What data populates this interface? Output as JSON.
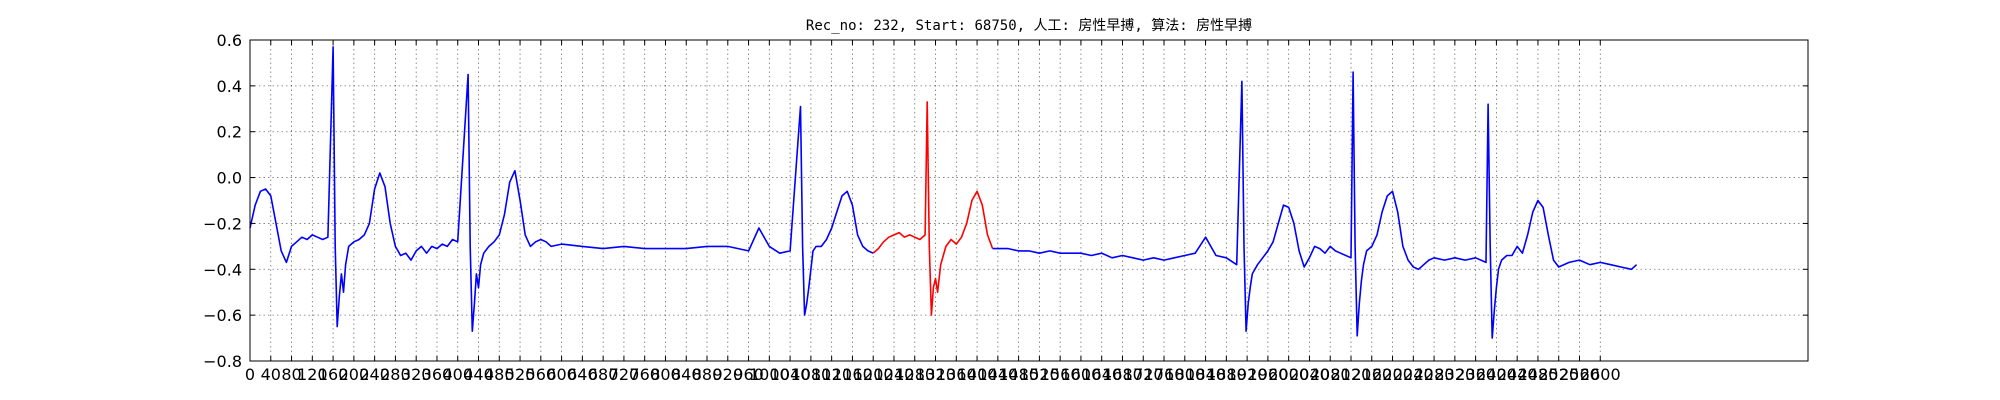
{
  "chart_data": {
    "type": "line",
    "title": "Rec_no: 232, Start: 68750, 人工: 房性早搏, 算法: 房性早搏",
    "xlabel": "",
    "ylabel": "",
    "xlim": [
      0,
      3000
    ],
    "ylim": [
      -0.8,
      0.6
    ],
    "grid": true,
    "xticks": [
      0,
      40,
      80,
      120,
      160,
      200,
      240,
      280,
      320,
      360,
      400,
      440,
      480,
      520,
      560,
      600,
      640,
      680,
      720,
      760,
      800,
      840,
      880,
      920,
      960,
      1000,
      1040,
      1080,
      1120,
      1160,
      1200,
      1240,
      1280,
      1320,
      1360,
      1400,
      1440,
      1480,
      1520,
      1560,
      1600,
      1640,
      1680,
      1720,
      1760,
      1800,
      1840,
      1880,
      1920,
      1960,
      2000,
      2040,
      2080,
      2120,
      2160,
      2200,
      2240,
      2280,
      2320,
      2360,
      2400,
      2440,
      2480,
      2520,
      2560,
      2600
    ],
    "xtick_labels": [
      "0",
      "40",
      "80",
      "120",
      "160",
      "200",
      "240",
      "280",
      "320",
      "360",
      "400",
      "440",
      "480",
      "520",
      "560",
      "600",
      "640",
      "680",
      "720",
      "760",
      "800",
      "840",
      "880",
      "920",
      "960",
      "1000",
      "1040",
      "1080",
      "1120",
      "1160",
      "1200",
      "1240",
      "1280",
      "1320",
      "1360",
      "1400",
      "1440",
      "1480",
      "1520",
      "1560",
      "1600",
      "1640",
      "1680",
      "1720",
      "1760",
      "1800",
      "1840",
      "1880",
      "1920",
      "1960",
      "2000",
      "2040",
      "2080",
      "2120",
      "2160",
      "2200",
      "2240",
      "2280",
      "2320",
      "2360",
      "2400",
      "2440",
      "2480",
      "2520",
      "2560",
      "2600"
    ],
    "yticks": [
      -0.8,
      -0.6,
      -0.4,
      -0.2,
      0.0,
      0.2,
      0.4,
      0.6
    ],
    "ytick_labels": [
      "−0.8",
      "−0.6",
      "−0.4",
      "−0.2",
      "0.0",
      "0.2",
      "0.4",
      "0.6"
    ],
    "series": [
      {
        "color": "#0000ff",
        "x": [
          0,
          10,
          20,
          30,
          40,
          50,
          60,
          70,
          80,
          90,
          100,
          110,
          120,
          130,
          140,
          150,
          160,
          164,
          168,
          172,
          176,
          180,
          184,
          190,
          200,
          210,
          220,
          230,
          240,
          250,
          260,
          270,
          280,
          290,
          300,
          310,
          320,
          330,
          340,
          350,
          360,
          370,
          380,
          390,
          400,
          420,
          424,
          428,
          432,
          436,
          440,
          444,
          450,
          460,
          470,
          480,
          490,
          500,
          510,
          520,
          530,
          540,
          550,
          560,
          570,
          580,
          600,
          640,
          680,
          720,
          760,
          800,
          840,
          880,
          920,
          940,
          960,
          980,
          1000,
          1020,
          1040,
          1060,
          1064,
          1068,
          1072,
          1076,
          1080,
          1084,
          1090,
          1100,
          1110,
          1120,
          1130,
          1140,
          1150,
          1160,
          1170,
          1180,
          1190,
          1200
        ],
        "y": [
          -0.22,
          -0.12,
          -0.06,
          -0.05,
          -0.08,
          -0.2,
          -0.32,
          -0.37,
          -0.3,
          -0.28,
          -0.26,
          -0.27,
          -0.25,
          -0.26,
          -0.27,
          -0.26,
          0.57,
          -0.3,
          -0.65,
          -0.52,
          -0.42,
          -0.5,
          -0.38,
          -0.3,
          -0.28,
          -0.27,
          -0.25,
          -0.2,
          -0.05,
          0.02,
          -0.04,
          -0.2,
          -0.3,
          -0.34,
          -0.33,
          -0.36,
          -0.32,
          -0.3,
          -0.33,
          -0.3,
          -0.31,
          -0.29,
          -0.3,
          -0.27,
          -0.28,
          0.45,
          -0.3,
          -0.67,
          -0.55,
          -0.42,
          -0.48,
          -0.38,
          -0.33,
          -0.3,
          -0.28,
          -0.25,
          -0.16,
          -0.02,
          0.03,
          -0.1,
          -0.25,
          -0.3,
          -0.28,
          -0.27,
          -0.28,
          -0.3,
          -0.29,
          -0.3,
          -0.31,
          -0.3,
          -0.31,
          -0.31,
          -0.31,
          -0.3,
          -0.3,
          -0.31,
          -0.32,
          -0.22,
          -0.3,
          -0.33,
          -0.32,
          0.31,
          -0.3,
          -0.6,
          -0.55,
          -0.48,
          -0.4,
          -0.32,
          -0.3,
          -0.3,
          -0.27,
          -0.22,
          -0.15,
          -0.08,
          -0.06,
          -0.12,
          -0.25,
          -0.3,
          -0.32,
          -0.33
        ]
      },
      {
        "color": "#ff0000",
        "x": [
          1200,
          1210,
          1220,
          1230,
          1240,
          1250,
          1260,
          1270,
          1280,
          1290,
          1300,
          1304,
          1308,
          1312,
          1316,
          1320,
          1324,
          1330,
          1340,
          1350,
          1360,
          1370,
          1380,
          1390,
          1400,
          1410,
          1420,
          1430
        ],
        "y": [
          -0.33,
          -0.31,
          -0.28,
          -0.26,
          -0.25,
          -0.24,
          -0.26,
          -0.25,
          -0.26,
          -0.27,
          -0.25,
          0.33,
          -0.3,
          -0.6,
          -0.48,
          -0.44,
          -0.5,
          -0.38,
          -0.3,
          -0.27,
          -0.29,
          -0.26,
          -0.2,
          -0.1,
          -0.06,
          -0.12,
          -0.25,
          -0.31
        ]
      },
      {
        "color": "#0000ff",
        "x": [
          1430,
          1440,
          1460,
          1480,
          1500,
          1520,
          1540,
          1560,
          1580,
          1600,
          1620,
          1640,
          1660,
          1680,
          1700,
          1720,
          1740,
          1760,
          1780,
          1800,
          1820,
          1840,
          1860,
          1880,
          1900,
          1910,
          1914,
          1918,
          1922,
          1926,
          1930,
          1940,
          1950,
          1960,
          1970,
          1980,
          1990,
          2000,
          2010,
          2020,
          2030,
          2040,
          2050,
          2060,
          2070,
          2080,
          2090,
          2100,
          2120,
          2124,
          2128,
          2132,
          2136,
          2140,
          2144,
          2150,
          2160,
          2170,
          2180,
          2190,
          2200,
          2210,
          2220,
          2230,
          2240,
          2250,
          2260,
          2270,
          2280,
          2300,
          2320,
          2340,
          2360,
          2380,
          2384,
          2388,
          2392,
          2396,
          2400,
          2404,
          2410,
          2420,
          2430,
          2440,
          2450,
          2460,
          2470,
          2480,
          2490,
          2500,
          2510,
          2520,
          2540,
          2560,
          2580,
          2600,
          2620,
          2640,
          2660,
          2670
        ],
        "y": [
          -0.31,
          -0.31,
          -0.31,
          -0.32,
          -0.32,
          -0.33,
          -0.32,
          -0.33,
          -0.33,
          -0.33,
          -0.34,
          -0.33,
          -0.35,
          -0.34,
          -0.35,
          -0.36,
          -0.35,
          -0.36,
          -0.35,
          -0.34,
          -0.33,
          -0.26,
          -0.34,
          -0.35,
          -0.38,
          0.42,
          -0.3,
          -0.67,
          -0.55,
          -0.48,
          -0.42,
          -0.38,
          -0.35,
          -0.32,
          -0.28,
          -0.2,
          -0.12,
          -0.13,
          -0.2,
          -0.32,
          -0.39,
          -0.35,
          -0.3,
          -0.31,
          -0.33,
          -0.3,
          -0.32,
          -0.33,
          -0.35,
          0.46,
          -0.3,
          -0.69,
          -0.55,
          -0.45,
          -0.38,
          -0.32,
          -0.3,
          -0.25,
          -0.15,
          -0.08,
          -0.06,
          -0.15,
          -0.3,
          -0.36,
          -0.39,
          -0.4,
          -0.38,
          -0.36,
          -0.35,
          -0.36,
          -0.35,
          -0.36,
          -0.35,
          -0.37,
          0.32,
          -0.3,
          -0.7,
          -0.58,
          -0.48,
          -0.4,
          -0.36,
          -0.34,
          -0.34,
          -0.3,
          -0.33,
          -0.25,
          -0.15,
          -0.1,
          -0.13,
          -0.25,
          -0.36,
          -0.39,
          -0.37,
          -0.36,
          -0.38,
          -0.37,
          -0.38,
          -0.39,
          -0.4,
          -0.38
        ]
      }
    ]
  }
}
